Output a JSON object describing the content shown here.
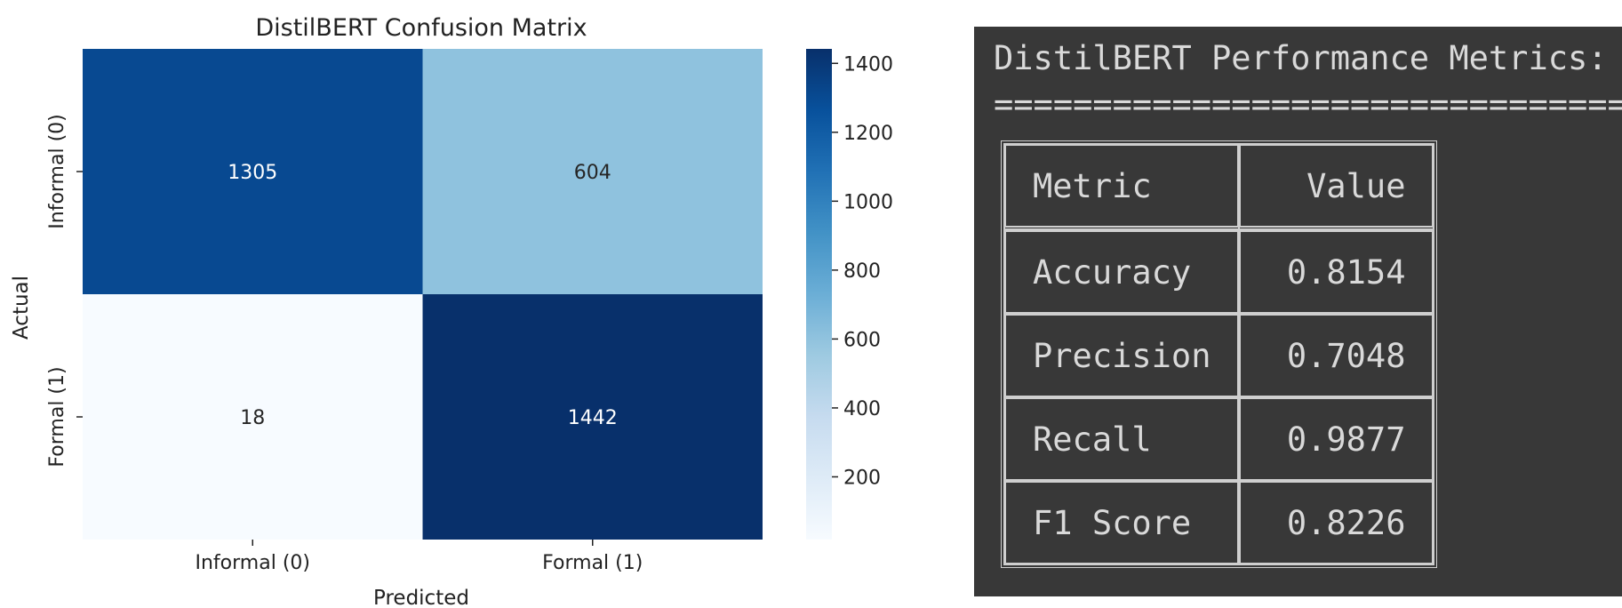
{
  "chart_data": {
    "type": "heatmap",
    "title": "DistilBERT Confusion Matrix",
    "xlabel": "Predicted",
    "ylabel": "Actual",
    "x_categories": [
      "Informal (0)",
      "Formal (1)"
    ],
    "y_categories": [
      "Informal (0)",
      "Formal (1)"
    ],
    "values": [
      [
        1305,
        604
      ],
      [
        18,
        1442
      ]
    ],
    "colormap": "Blues",
    "colorbar": {
      "ticks": [
        200,
        400,
        600,
        800,
        1000,
        1200,
        1400
      ],
      "range": [
        18,
        1442
      ]
    }
  },
  "terminal": {
    "title": "DistilBERT Performance Metrics:",
    "rule": "=====================================",
    "headers": {
      "metric": "Metric",
      "value": "Value"
    },
    "rows": [
      {
        "metric": "Accuracy",
        "value": "0.8154"
      },
      {
        "metric": "Precision",
        "value": "0.7048"
      },
      {
        "metric": "Recall",
        "value": "0.9877"
      },
      {
        "metric": "F1 Score",
        "value": "0.8226"
      }
    ],
    "background": "#383838",
    "text_color": "#d9d9d9"
  }
}
